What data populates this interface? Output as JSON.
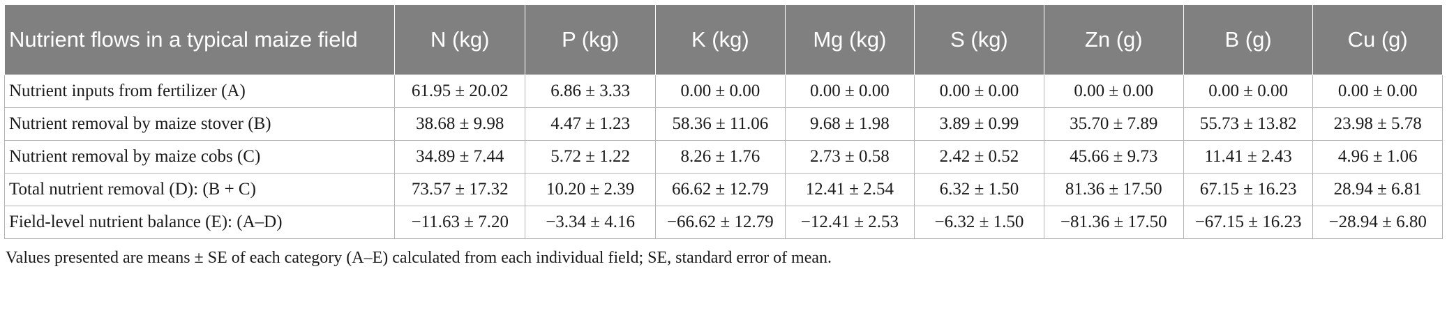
{
  "table": {
    "headers": [
      "Nutrient flows in a typical maize field",
      "N (kg)",
      "P (kg)",
      "K (kg)",
      "Mg (kg)",
      "S (kg)",
      "Zn (g)",
      "B (g)",
      "Cu (g)"
    ],
    "rows": [
      {
        "label": "Nutrient inputs from fertilizer (A)",
        "values": [
          "61.95 ± 20.02",
          "6.86 ± 3.33",
          "0.00 ± 0.00",
          "0.00 ± 0.00",
          "0.00 ± 0.00",
          "0.00 ± 0.00",
          "0.00 ± 0.00",
          "0.00 ± 0.00"
        ]
      },
      {
        "label": "Nutrient removal by maize stover (B)",
        "values": [
          "38.68 ± 9.98",
          "4.47 ± 1.23",
          "58.36 ± 11.06",
          "9.68 ± 1.98",
          "3.89 ± 0.99",
          "35.70 ± 7.89",
          "55.73 ± 13.82",
          "23.98 ± 5.78"
        ]
      },
      {
        "label": "Nutrient removal by maize cobs (C)",
        "values": [
          "34.89 ± 7.44",
          "5.72 ± 1.22",
          "8.26 ± 1.76",
          "2.73 ± 0.58",
          "2.42 ± 0.52",
          "45.66 ± 9.73",
          "11.41 ± 2.43",
          "4.96 ± 1.06"
        ]
      },
      {
        "label": "Total nutrient removal (D): (B + C)",
        "values": [
          "73.57 ± 17.32",
          "10.20 ± 2.39",
          "66.62 ± 12.79",
          "12.41 ± 2.54",
          "6.32 ± 1.50",
          "81.36 ± 17.50",
          "67.15 ± 16.23",
          "28.94 ± 6.81"
        ]
      },
      {
        "label": "Field-level nutrient balance (E): (A–D)",
        "values": [
          "−11.63 ± 7.20",
          "−3.34 ± 4.16",
          "−66.62 ± 12.79",
          "−12.41 ± 2.53",
          "−6.32 ± 1.50",
          "−81.36 ± 17.50",
          "−67.15 ± 16.23",
          "−28.94 ± 6.80"
        ]
      }
    ]
  },
  "footnote": "Values presented are means ± SE of each category (A–E) calculated from each individual field; SE, standard error of mean.",
  "colors": {
    "header_bg": "#808080",
    "header_text": "#ffffff",
    "grid": "#b4b4b4"
  }
}
